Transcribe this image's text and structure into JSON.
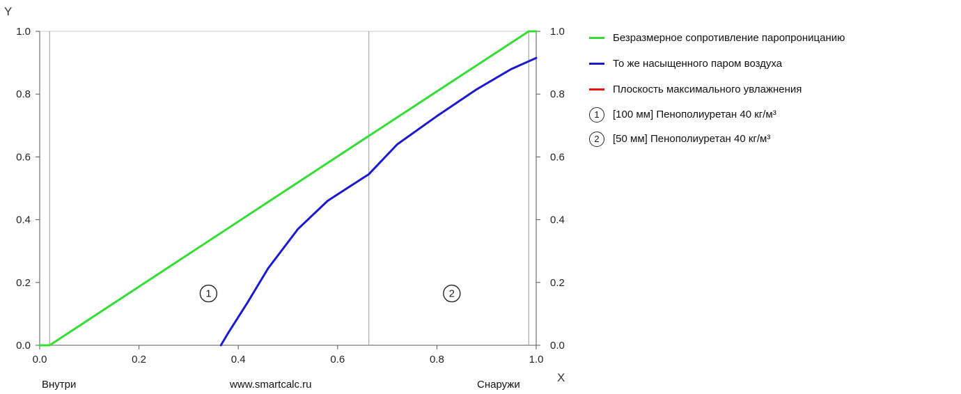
{
  "chart_data": {
    "type": "line",
    "xlabel": "X",
    "ylabel": "Y",
    "xlim": [
      0,
      1
    ],
    "ylim": [
      0,
      1
    ],
    "xticks": [
      "0.0",
      "0.2",
      "0.4",
      "0.6",
      "0.8",
      "1.0"
    ],
    "yticks": [
      "0.0",
      "0.2",
      "0.4",
      "0.6",
      "0.8",
      "1.0"
    ],
    "x_left_label": "Внутри",
    "x_center_label": "www.smartcalc.ru",
    "x_right_label": "Снаружи",
    "boundaries": [
      0.02,
      0.663,
      0.985
    ],
    "series": [
      {
        "name": "Безразмерное сопротивление паропроницанию",
        "color": "#33dd33",
        "points": [
          [
            0,
            0
          ],
          [
            0.02,
            0
          ],
          [
            0.663,
            0.667
          ],
          [
            0.985,
            1.0
          ],
          [
            1.0,
            1.0
          ]
        ]
      },
      {
        "name": "То же насыщенного паром воздуха",
        "color": "#1a1acc",
        "points": [
          [
            0.365,
            0
          ],
          [
            0.38,
            0.04
          ],
          [
            0.42,
            0.14
          ],
          [
            0.46,
            0.245
          ],
          [
            0.52,
            0.37
          ],
          [
            0.58,
            0.46
          ],
          [
            0.663,
            0.545
          ],
          [
            0.72,
            0.64
          ],
          [
            0.8,
            0.73
          ],
          [
            0.88,
            0.815
          ],
          [
            0.95,
            0.88
          ],
          [
            1.0,
            0.915
          ]
        ]
      },
      {
        "name": "Плоскость максимального увлажнения",
        "color": "#ee1111",
        "points": []
      }
    ],
    "layers": [
      {
        "num": "1",
        "label": "[100 мм] Пенополиуретан 40 кг/м³",
        "x": 0.34,
        "y": 0.165
      },
      {
        "num": "2",
        "label": "[50 мм] Пенополиуретан 40 кг/м³",
        "x": 0.83,
        "y": 0.165
      }
    ],
    "grid": false,
    "legend_position": "right"
  }
}
